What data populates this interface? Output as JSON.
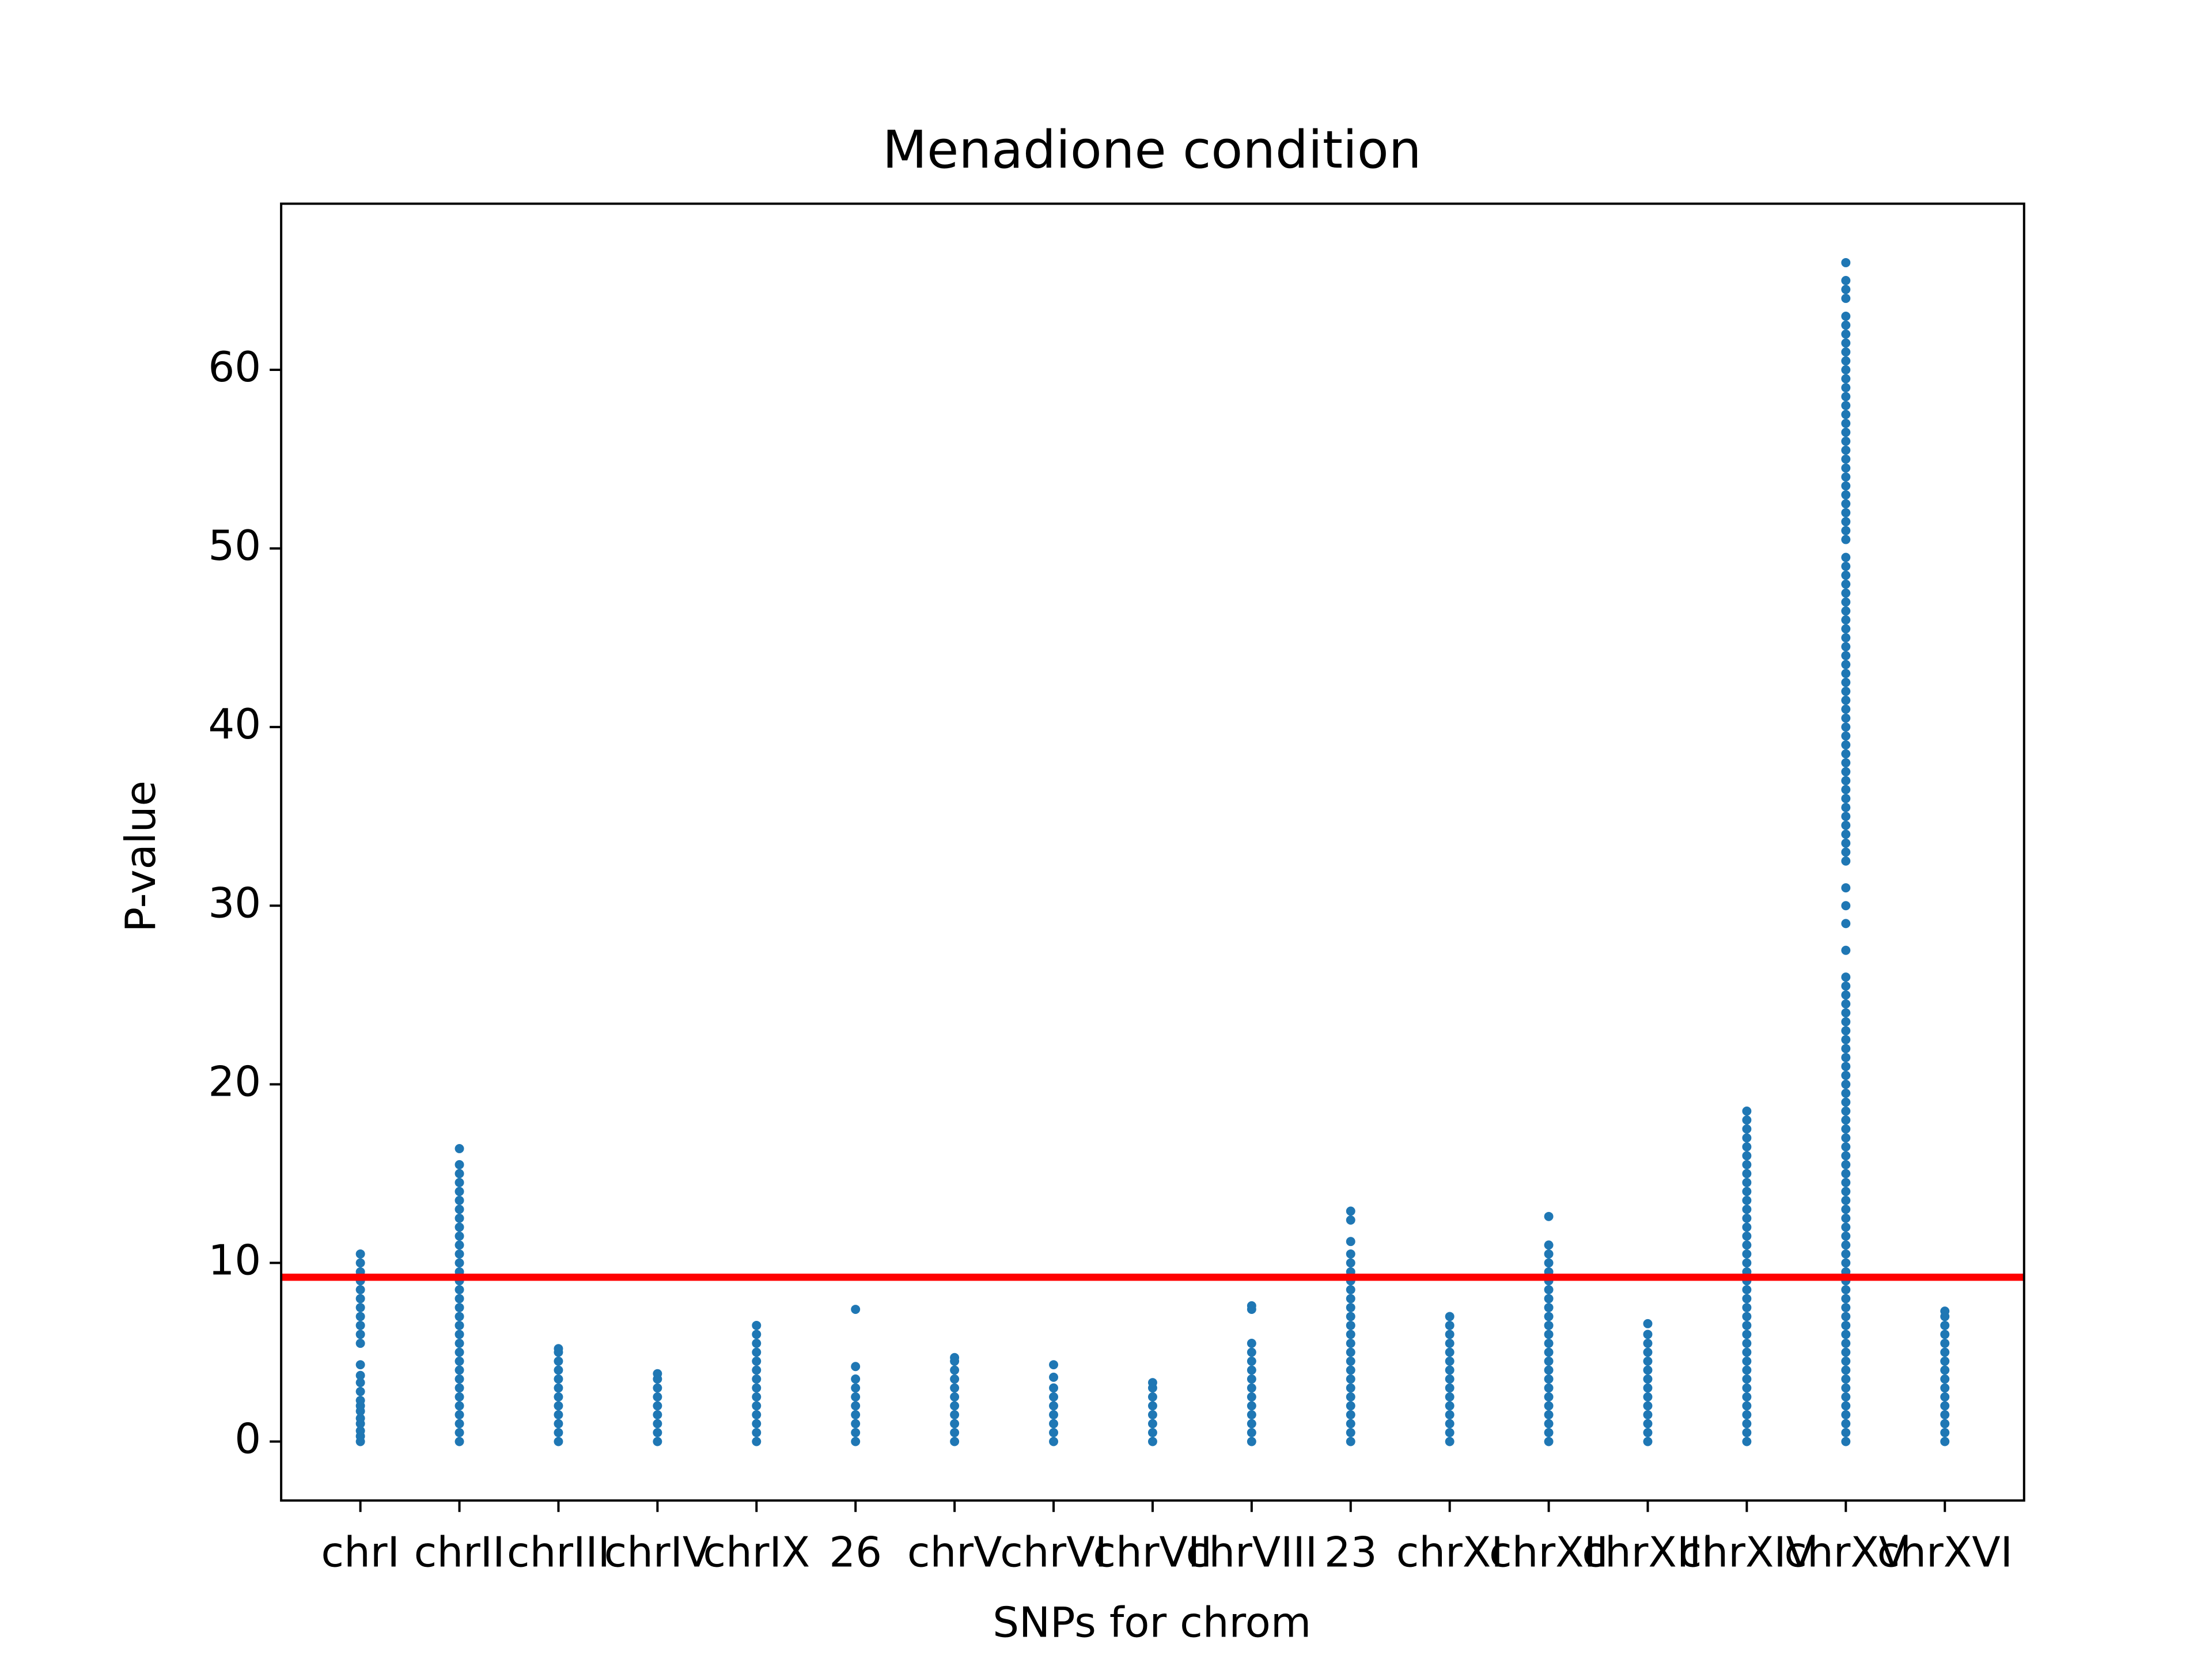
{
  "chart_data": {
    "type": "strip",
    "title": "Menadione condition",
    "x_label": "SNPs for chrom",
    "y_label": "P-value",
    "categories": [
      "chrI",
      "chrII",
      "chrIII",
      "chrIV",
      "chrIX",
      "26",
      "chrV",
      "chrVI",
      "chrVII",
      "chrVIII",
      "23",
      "chrXI",
      "chrXII",
      "chrXIII",
      "chrXIV",
      "chrXV",
      "chrXVI"
    ],
    "color": "#1f77b4",
    "values": [
      [
        0,
        0.3,
        0.6,
        1,
        1.3,
        1.7,
        2,
        2.3,
        2.8,
        3.3,
        3.7,
        4.3,
        5.5,
        6,
        6.5,
        7,
        7.5,
        8,
        8.5,
        9,
        9.5,
        10,
        10.5
      ],
      [
        0,
        0.5,
        1,
        1.5,
        2,
        2.5,
        3,
        3.5,
        4,
        4.5,
        5,
        5.5,
        6,
        6.5,
        7,
        7.5,
        8,
        8.5,
        9,
        9.5,
        10,
        10.5,
        11,
        11.5,
        12,
        12.5,
        13,
        13.5,
        14,
        14.5,
        15,
        15.5,
        16.4
      ],
      [
        0,
        0.5,
        1,
        1.5,
        2,
        2.5,
        3,
        3.5,
        4,
        4.5,
        5,
        5.2
      ],
      [
        0,
        0.5,
        1,
        1.5,
        2,
        2.5,
        3,
        3.5,
        3.8
      ],
      [
        0,
        0.5,
        1,
        1.5,
        2,
        2.5,
        3,
        3.5,
        4,
        4.5,
        5,
        5.5,
        6,
        6.5
      ],
      [
        0,
        0.5,
        1,
        1.5,
        2,
        2.5,
        3,
        3.5,
        4.2,
        7.4
      ],
      [
        0,
        0.5,
        1,
        1.5,
        2,
        2.5,
        3,
        3.5,
        4,
        4.5,
        4.7
      ],
      [
        0,
        0.5,
        1,
        1.5,
        2,
        2.5,
        3,
        3.6,
        4.3
      ],
      [
        0,
        0.5,
        1,
        1.5,
        2,
        2.5,
        3,
        3.3
      ],
      [
        0,
        0.5,
        1,
        1.5,
        2,
        2.5,
        3,
        3.5,
        4,
        4.5,
        5,
        5.5,
        7.4,
        7.6
      ],
      [
        0,
        0.5,
        1,
        1.5,
        2,
        2.5,
        3,
        3.5,
        4,
        4.5,
        5,
        5.5,
        6,
        6.5,
        7,
        7.5,
        8,
        8.5,
        9,
        9.5,
        10,
        10.5,
        11.2,
        12.4,
        12.9
      ],
      [
        0,
        0.5,
        1,
        1.5,
        2,
        2.5,
        3,
        3.5,
        4,
        4.5,
        5,
        5.5,
        6,
        6.5,
        7
      ],
      [
        0,
        0.5,
        1,
        1.5,
        2,
        2.5,
        3,
        3.5,
        4,
        4.5,
        5,
        5.5,
        6,
        6.5,
        7,
        7.5,
        8,
        8.5,
        9,
        9.5,
        10,
        10.5,
        11,
        12.6
      ],
      [
        0,
        0.5,
        1,
        1.5,
        2,
        2.5,
        3,
        3.5,
        4,
        4.5,
        5,
        5.5,
        6,
        6.6
      ],
      [
        0,
        0.5,
        1,
        1.5,
        2,
        2.5,
        3,
        3.5,
        4,
        4.5,
        5,
        5.5,
        6,
        6.5,
        7,
        7.5,
        8,
        8.5,
        9,
        9.5,
        10,
        10.5,
        11,
        11.5,
        12,
        12.5,
        13,
        13.5,
        14,
        14.5,
        15,
        15.5,
        16,
        16.5,
        17,
        17.5,
        18,
        18.5
      ],
      [
        0,
        0.5,
        1,
        1.5,
        2,
        2.5,
        3,
        3.5,
        4,
        4.5,
        5,
        5.5,
        6,
        6.5,
        7,
        7.5,
        8,
        8.5,
        9,
        9.5,
        10,
        10.5,
        11,
        11.5,
        12,
        12.5,
        13,
        13.5,
        14,
        14.5,
        15,
        15.5,
        16,
        16.5,
        17,
        17.5,
        18,
        18.5,
        19,
        19.5,
        20,
        20.5,
        21,
        21.5,
        22,
        22.5,
        23,
        23.5,
        24,
        24.5,
        25,
        25.5,
        26,
        27.5,
        29,
        30,
        31,
        32.5,
        33,
        33.5,
        34,
        34.5,
        35,
        35.5,
        36,
        36.5,
        37,
        37.5,
        38,
        38.5,
        39,
        39.5,
        40,
        40.5,
        41,
        41.5,
        42,
        42.5,
        43,
        43.5,
        44,
        44.5,
        45,
        45.5,
        46,
        46.5,
        47,
        47.5,
        48,
        48.5,
        49,
        49.5,
        50.5,
        51,
        51.5,
        52,
        52.5,
        53,
        53.5,
        54,
        54.5,
        55,
        55.5,
        56,
        56.5,
        57,
        57.5,
        58,
        58.5,
        59,
        59.5,
        60,
        60.5,
        61,
        61.5,
        62,
        62.5,
        63,
        64,
        64.5,
        65,
        66
      ],
      [
        0,
        0.5,
        1,
        1.5,
        2,
        2.5,
        3,
        3.5,
        4,
        4.5,
        5,
        5.5,
        6,
        6.5,
        7,
        7.3
      ]
    ],
    "threshold": 9.2,
    "threshold_color": "#ff0000",
    "xlim": [
      -0.8,
      16.8
    ],
    "ylim": [
      -3.3,
      69.3
    ],
    "yticks": [
      0,
      10,
      20,
      30,
      40,
      50,
      60
    ]
  }
}
